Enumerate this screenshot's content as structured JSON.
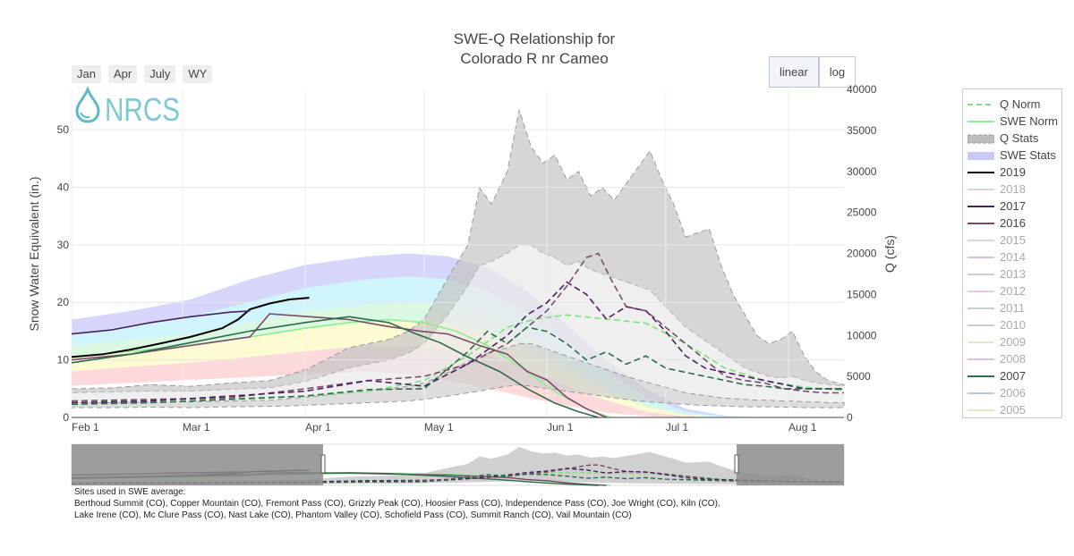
{
  "title_line1": "SWE-Q Relationship for",
  "title_line2": "Colorado R nr Cameo",
  "range_buttons": [
    "Jan",
    "Apr",
    "July",
    "WY"
  ],
  "scale_buttons": {
    "linear": "linear",
    "log": "log",
    "active": "linear"
  },
  "logo_text": "NRCS",
  "colors": {
    "q_norm": "#7ee07e",
    "swe_norm": "#90ee90",
    "q_stats": "#bdbdbd",
    "swe_stats": "#c9c9f7",
    "y2019": "#000000",
    "y2017": "#4b2060",
    "y2016": "#7a4a6a",
    "y2007": "#2e6b4a"
  },
  "legend": [
    {
      "label": "Q Norm",
      "kind": "dash",
      "color": "#7ee07e",
      "active": true
    },
    {
      "label": "SWE Norm",
      "kind": "line",
      "color": "#90ee90",
      "active": true
    },
    {
      "label": "Q Stats",
      "kind": "area",
      "color": "#bdbdbd",
      "active": true
    },
    {
      "label": "SWE Stats",
      "kind": "area",
      "color": "#c9c9f7",
      "active": true
    },
    {
      "label": "2019",
      "kind": "line",
      "color": "#000000",
      "active": true
    },
    {
      "label": "2018",
      "kind": "line",
      "color": "#d4b3b8",
      "active": false
    },
    {
      "label": "2017",
      "kind": "line",
      "color": "#4b2060",
      "active": true
    },
    {
      "label": "2016",
      "kind": "line",
      "color": "#7a4a6a",
      "active": true
    },
    {
      "label": "2015",
      "kind": "line",
      "color": "#c0c0c0",
      "active": false
    },
    {
      "label": "2014",
      "kind": "line",
      "color": "#b89ab8",
      "active": false
    },
    {
      "label": "2013",
      "kind": "line",
      "color": "#b0a8b8",
      "active": false
    },
    {
      "label": "2012",
      "kind": "line",
      "color": "#d8a0c8",
      "active": false
    },
    {
      "label": "2011",
      "kind": "line",
      "color": "#9ab8a8",
      "active": false
    },
    {
      "label": "2010",
      "kind": "line",
      "color": "#b4a8b8",
      "active": false
    },
    {
      "label": "2009",
      "kind": "line",
      "color": "#d4d4a4",
      "active": false
    },
    {
      "label": "2008",
      "kind": "line",
      "color": "#c898c8",
      "active": false
    },
    {
      "label": "2007",
      "kind": "line",
      "color": "#2e6b4a",
      "active": true
    },
    {
      "label": "2006",
      "kind": "line",
      "color": "#8aa8c0",
      "active": false
    },
    {
      "label": "2005",
      "kind": "line",
      "color": "#d4d4a4",
      "active": false
    }
  ],
  "sites_header": "Sites used in SWE average:",
  "sites_line1": "Berthoud Summit (CO), Copper Mountain (CO), Fremont Pass (CO), Grizzly Peak (CO), Hoosier Pass (CO), Independence Pass (CO), Joe Wright (CO), Kiln (CO),",
  "sites_line2": "Lake Irene (CO), Mc Clure Pass (CO), Nast Lake (CO), Phantom Valley (CO), Schofield Pass (CO), Summit Ranch (CO), Vail Mountain (CO)",
  "chart_data": {
    "type": "line",
    "title": "SWE-Q Relationship for Colorado R nr Cameo",
    "xlabel": "",
    "ylabel_left": "Snow Water Equivalent (in.)",
    "ylabel_right": "Q (cfs)",
    "x_range": [
      "Feb 1",
      "Aug 10"
    ],
    "x_ticks": [
      {
        "label": "Feb  1",
        "day": 0
      },
      {
        "label": "Mar  1",
        "day": 28
      },
      {
        "label": "Apr  1",
        "day": 59
      },
      {
        "label": "May  1",
        "day": 89
      },
      {
        "label": "Jun  1",
        "day": 120
      },
      {
        "label": "Jul  1",
        "day": 150
      },
      {
        "label": "Aug  1",
        "day": 181
      }
    ],
    "ylim_left": [
      0,
      57
    ],
    "yticks_left": [
      0,
      10,
      20,
      30,
      40,
      50
    ],
    "ylim_right": [
      0,
      40000
    ],
    "yticks_right": [
      0,
      5000,
      10000,
      15000,
      20000,
      25000,
      30000,
      35000,
      40000
    ],
    "grid": true,
    "legend_position": "right",
    "swe_stats_bands": {
      "days": [
        0,
        15,
        30,
        45,
        59,
        75,
        85,
        95,
        105,
        115,
        125,
        135,
        145,
        155,
        165,
        175,
        181
      ],
      "max": [
        17,
        18.5,
        20.5,
        24,
        26.5,
        28,
        28.5,
        28,
        26,
        22,
        16,
        10,
        5,
        1.5,
        0.3,
        0,
        0
      ],
      "p90": [
        14.5,
        16,
        17.5,
        20,
        22.5,
        24,
        24.5,
        24,
        22,
        18,
        13,
        8,
        3.5,
        1,
        0.2,
        0,
        0
      ],
      "p70": [
        12.5,
        13.5,
        14.5,
        16.5,
        18.5,
        19.5,
        20,
        19.5,
        18,
        14.5,
        10,
        6,
        2.5,
        0.6,
        0,
        0,
        0
      ],
      "p50": [
        10.5,
        11.5,
        12.5,
        14,
        15.5,
        16.5,
        16.8,
        16.3,
        15,
        12,
        8,
        4.5,
        1.8,
        0.4,
        0,
        0,
        0
      ],
      "p30": [
        8,
        8.8,
        9.5,
        10.5,
        11.5,
        12.5,
        12.5,
        12,
        11,
        8.5,
        5.5,
        3,
        1,
        0.2,
        0,
        0,
        0
      ],
      "p10": [
        5.5,
        6,
        6.5,
        7,
        7.5,
        8,
        7.5,
        6.5,
        5,
        3.5,
        2,
        0.8,
        0.2,
        0,
        0,
        0,
        0
      ],
      "min": [
        3,
        3.2,
        3.5,
        3.8,
        4,
        4,
        3.5,
        2.5,
        1.5,
        0.8,
        0.3,
        0,
        0,
        0,
        0,
        0,
        0
      ]
    },
    "q_stats": {
      "days": [
        0,
        10,
        20,
        30,
        40,
        50,
        55,
        60,
        70,
        80,
        85,
        89,
        95,
        100,
        103,
        106,
        110,
        113,
        116,
        119,
        122,
        125,
        128,
        131,
        134,
        137,
        140,
        143,
        146,
        149,
        152,
        155,
        158,
        161,
        164,
        167,
        170,
        173,
        176,
        179,
        182,
        185,
        188,
        191,
        195
      ],
      "max": [
        3500,
        3600,
        4000,
        3800,
        4200,
        4500,
        5200,
        6000,
        8500,
        9500,
        10500,
        12000,
        17000,
        21000,
        28000,
        26000,
        30000,
        37500,
        33000,
        31000,
        32000,
        29000,
        30000,
        27000,
        28000,
        26500,
        28500,
        30500,
        32500,
        29000,
        26000,
        22000,
        22500,
        23000,
        18500,
        15000,
        12500,
        10000,
        9000,
        9500,
        10500,
        7500,
        5500,
        4500,
        4000
      ],
      "p75": [
        3000,
        3100,
        3200,
        3200,
        3400,
        3600,
        4000,
        4500,
        6000,
        7000,
        7800,
        9000,
        12500,
        16000,
        18500,
        19000,
        20000,
        21000,
        21000,
        20000,
        19500,
        18500,
        19000,
        18000,
        17500,
        17000,
        16500,
        16000,
        15500,
        14000,
        12500,
        11000,
        10000,
        9000,
        8000,
        7000,
        6000,
        5500,
        5000,
        4800,
        5000,
        4500,
        4200,
        4000,
        3800
      ],
      "p25": [
        1800,
        1800,
        1900,
        1900,
        2000,
        2100,
        2300,
        2500,
        3000,
        3500,
        3800,
        4200,
        5500,
        6800,
        7500,
        8000,
        8500,
        9000,
        9000,
        8500,
        8000,
        7500,
        7000,
        6500,
        6000,
        5500,
        5000,
        4600,
        4200,
        3800,
        3400,
        3000,
        2800,
        2600,
        2400,
        2300,
        2200,
        2100,
        2100,
        2000,
        2000,
        1900,
        1900,
        1800,
        1800
      ],
      "min": [
        1200,
        1200,
        1250,
        1200,
        1300,
        1350,
        1400,
        1500,
        1700,
        1900,
        2000,
        2200,
        2600,
        3000,
        3200,
        3500,
        3800,
        4000,
        3800,
        3600,
        3400,
        3200,
        3000,
        2800,
        2600,
        2400,
        2200,
        2000,
        1900,
        1800,
        1700,
        1600,
        1500,
        1450,
        1400,
        1350,
        1300,
        1300,
        1300,
        1250,
        1250,
        1200,
        1200,
        1200,
        1200
      ]
    },
    "series": [
      {
        "name": "SWE Norm",
        "axis": "left",
        "style": "solid",
        "color": "#90ee90",
        "days": [
          0,
          15,
          30,
          45,
          59,
          70,
          80,
          89,
          97,
          105,
          115,
          122,
          130,
          136
        ],
        "values": [
          10.5,
          11.5,
          12.5,
          14,
          15.5,
          16.5,
          17,
          16.5,
          15,
          12.5,
          8,
          4.5,
          1.5,
          0
        ]
      },
      {
        "name": "Q Norm",
        "axis": "right",
        "style": "dash",
        "color": "#7ee07e",
        "days": [
          0,
          20,
          40,
          59,
          75,
          89,
          100,
          110,
          117,
          125,
          135,
          145,
          155,
          165,
          175,
          185,
          195
        ],
        "values": [
          2000,
          2100,
          2300,
          2600,
          3200,
          4500,
          7500,
          11000,
          12000,
          12500,
          12000,
          11500,
          9000,
          6000,
          4500,
          3700,
          3300
        ]
      },
      {
        "name": "2019",
        "axis": "left",
        "style": "solid",
        "color": "#000000",
        "days": [
          0,
          8,
          15,
          22,
          30,
          38,
          42,
          45,
          50,
          55,
          60
        ],
        "values": [
          10.5,
          11,
          11.8,
          12.8,
          14,
          15.5,
          17,
          18.8,
          19.8,
          20.5,
          20.8
        ]
      },
      {
        "name": "2017",
        "axis": "left",
        "style": "solid",
        "color": "#4b2060",
        "days": [
          0,
          10,
          20,
          30,
          40,
          45
        ],
        "values": [
          14.5,
          15.2,
          16.5,
          17.5,
          18.3,
          18.5
        ]
      },
      {
        "name": "2016",
        "axis": "left",
        "style": "solid",
        "color": "#7a4a6a",
        "days": [
          0,
          15,
          30,
          45,
          50,
          60,
          70,
          80,
          88,
          95,
          103,
          110,
          115,
          120,
          125,
          130,
          135
        ],
        "values": [
          10,
          11,
          12.5,
          14,
          18,
          17.5,
          17,
          15.8,
          15,
          14.5,
          12.5,
          11,
          8,
          6.5,
          3.5,
          1.5,
          0
        ]
      },
      {
        "name": "2007",
        "axis": "left",
        "style": "solid",
        "color": "#2e6b4a",
        "days": [
          0,
          15,
          30,
          45,
          59,
          70,
          80,
          87,
          93,
          100,
          108,
          115,
          122,
          128,
          133
        ],
        "values": [
          9.5,
          11,
          13,
          15,
          16.5,
          17.5,
          16.5,
          14.5,
          13,
          10.5,
          8,
          5,
          2.5,
          1,
          0
        ]
      },
      {
        "name": "2016 Q",
        "axis": "right",
        "style": "dash",
        "color": "#7a4a6a",
        "days": [
          0,
          20,
          40,
          59,
          75,
          89,
          100,
          110,
          115,
          120,
          125,
          130,
          133,
          136,
          140,
          145,
          150,
          155,
          160,
          165,
          170,
          175,
          180,
          185,
          190,
          195
        ],
        "values": [
          2000,
          2200,
          2400,
          3500,
          4500,
          5000,
          6500,
          9000,
          11000,
          13000,
          16000,
          19500,
          20000,
          17000,
          13500,
          13000,
          11000,
          9000,
          7000,
          5000,
          4500,
          4200,
          3500,
          3200,
          3000,
          3000
        ]
      },
      {
        "name": "2017 Q",
        "axis": "right",
        "style": "dash",
        "color": "#4b2060",
        "days": [
          0,
          20,
          40,
          59,
          75,
          89,
          100,
          110,
          115,
          120,
          125,
          130,
          135,
          140,
          145,
          150,
          155,
          160,
          165,
          170,
          175,
          180,
          185,
          190,
          195
        ],
        "values": [
          1800,
          2000,
          2600,
          3200,
          4500,
          3800,
          6500,
          10000,
          12500,
          14000,
          16500,
          15000,
          12000,
          13500,
          13000,
          10500,
          7500,
          6000,
          5500,
          5000,
          4500,
          4000,
          3500,
          3500,
          3500
        ]
      },
      {
        "name": "2007 Q",
        "axis": "right",
        "style": "dash",
        "color": "#2e6b4a",
        "days": [
          0,
          20,
          40,
          59,
          75,
          89,
          100,
          105,
          110,
          115,
          120,
          125,
          130,
          135,
          140,
          145,
          150,
          155,
          160,
          165,
          170,
          175,
          180,
          185,
          190,
          195
        ],
        "values": [
          1600,
          1800,
          2200,
          2600,
          3400,
          3500,
          8000,
          10500,
          9000,
          11000,
          10500,
          9000,
          7000,
          8000,
          6500,
          7500,
          6000,
          5500,
          5000,
          4500,
          4000,
          3800,
          3500,
          3500,
          3500,
          3500
        ]
      }
    ]
  }
}
